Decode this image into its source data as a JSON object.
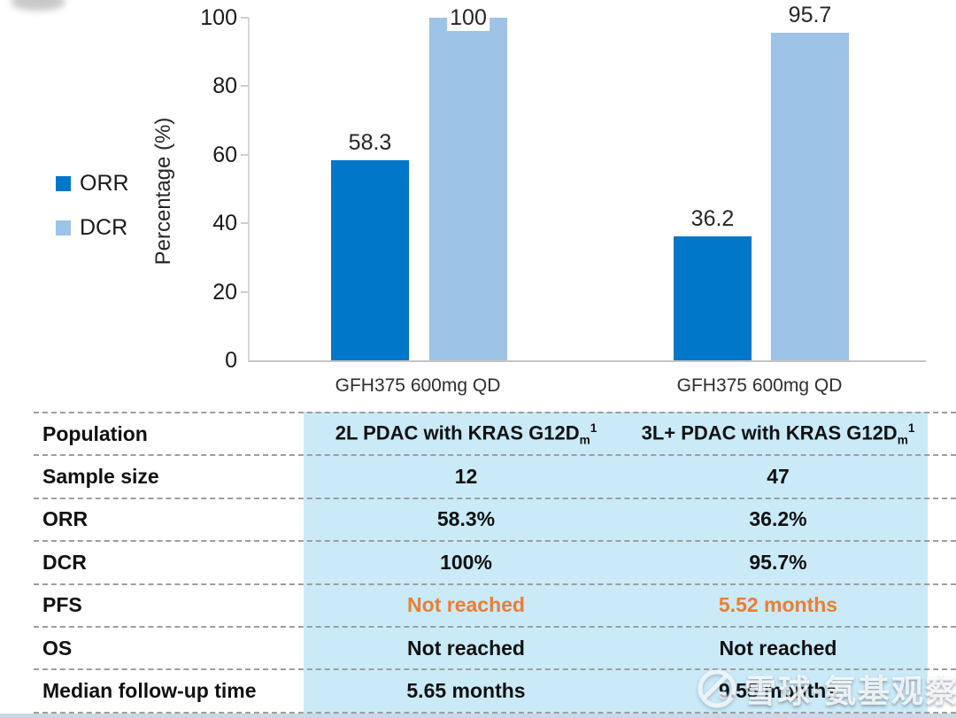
{
  "chart": {
    "ylabel": "Percentage (%)",
    "yticks": [
      "100",
      "80",
      "60",
      "40",
      "20",
      "0"
    ]
  },
  "chart_data": {
    "type": "bar",
    "title": "",
    "categories": [
      "GFH375 600mg QD",
      "GFH375 600mg QD"
    ],
    "series": [
      {
        "name": "ORR",
        "color": "#0077C8",
        "values": [
          58.3,
          36.2
        ]
      },
      {
        "name": "DCR",
        "color": "#9DC3E6",
        "values": [
          100,
          95.7
        ]
      }
    ],
    "value_labels": [
      [
        "58.3",
        "36.2"
      ],
      [
        "100",
        "95.7"
      ]
    ],
    "xlabel": "",
    "ylabel": "Percentage (%)",
    "ylim": [
      0,
      100
    ],
    "yticks": [
      0,
      20,
      40,
      60,
      80,
      100
    ],
    "grid": false,
    "legend_position": "left"
  },
  "table": {
    "rows": [
      {
        "label": "Population",
        "c1": {
          "text": "2L PDAC with KRAS G12D",
          "sub": "m",
          "sup": "1"
        },
        "c2": {
          "text": "3L+ PDAC with KRAS G12D",
          "sub": "m",
          "sup": "1"
        }
      },
      {
        "label": "Sample size",
        "c1": "12",
        "c2": "47"
      },
      {
        "label": "ORR",
        "c1": "58.3%",
        "c2": "36.2%"
      },
      {
        "label": "DCR",
        "c1": "100%",
        "c2": "95.7%"
      },
      {
        "label": "PFS",
        "c1": "Not reached",
        "c2": "5.52 months"
      },
      {
        "label": "OS",
        "c1": "Not reached",
        "c2": "Not reached"
      },
      {
        "label": "Median follow-up time",
        "c1": "5.65 months",
        "c2": "9.55 months"
      }
    ]
  },
  "watermark": {
    "text": "雪球·氨基观察"
  },
  "colors": {
    "orr": "#0077C8",
    "dcr": "#9DC3E6",
    "table-bg": "#CAEAF8",
    "accent": "#ED7D31",
    "strip": "#C9D7E7"
  }
}
